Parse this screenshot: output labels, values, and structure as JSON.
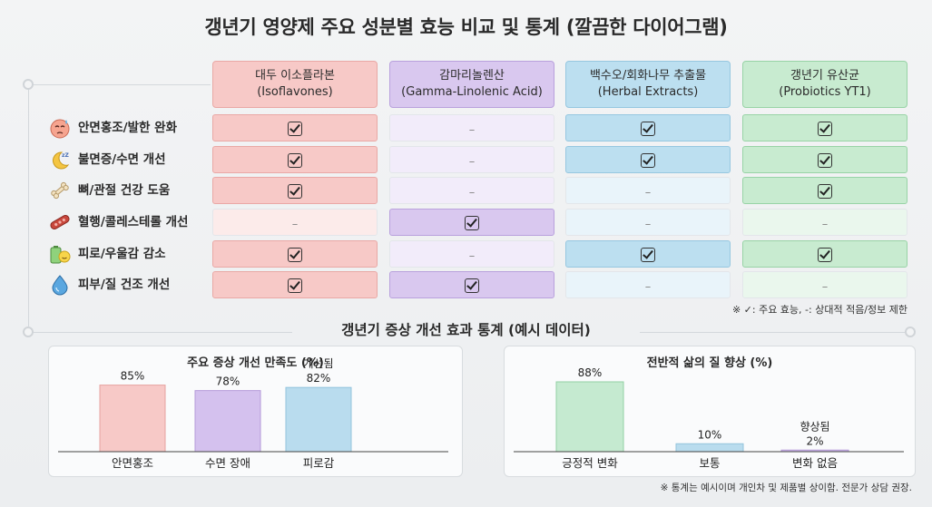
{
  "title": "갱년기 영양제 주요 성분별 효능 비교 및 통계 (깔끔한 다이어그램)",
  "columns": [
    {
      "name": "대두 이소플라본",
      "sub": "(Isoflavones)"
    },
    {
      "name": "감마리놀렌산",
      "sub": "(Gamma-Linolenic Acid)"
    },
    {
      "name": "백수오/회화나무 추출물",
      "sub": "(Herbal Extracts)"
    },
    {
      "name": "갱년기 유산균",
      "sub": "(Probiotics YT1)"
    }
  ],
  "column_colors": [
    {
      "strong": "#f7c9c7",
      "weak": "#fcebea",
      "border": "#e9a8a5"
    },
    {
      "strong": "#d9c8ef",
      "weak": "#f2ecfa",
      "border": "#b9a1dd"
    },
    {
      "strong": "#bcdff0",
      "weak": "#e9f4fa",
      "border": "#96c7e0"
    },
    {
      "strong": "#c8ebd0",
      "weak": "#eaf7ed",
      "border": "#98d3a6"
    }
  ],
  "rows": [
    {
      "label": "안면홍조/발한 완화",
      "icon": "sweating-face-icon",
      "marks": [
        true,
        false,
        true,
        true
      ]
    },
    {
      "label": "불면증/수면 개선",
      "icon": "moon-sleep-icon",
      "marks": [
        true,
        false,
        true,
        true
      ]
    },
    {
      "label": "뼈/관절 건강 도움",
      "icon": "bone-icon",
      "marks": [
        true,
        false,
        false,
        true
      ]
    },
    {
      "label": "혈행/콜레스테롤 개선",
      "icon": "blood-vessel-icon",
      "marks": [
        false,
        true,
        false,
        false
      ]
    },
    {
      "label": "피로/우울감 감소",
      "icon": "battery-smile-icon",
      "marks": [
        true,
        false,
        true,
        true
      ]
    },
    {
      "label": "피부/질 건조 개선",
      "icon": "water-drop-icon",
      "marks": [
        true,
        true,
        false,
        false
      ]
    }
  ],
  "dash_symbol": "–",
  "legend_note": "※ ✓: 주요 효능, -: 상대적 적음/정보 제한",
  "stats_title": "갱년기 증상 개선 효과 통계 (예시 데이터)",
  "footnote": "※ 통계는 예시이며 개인차 및 제품별 상이함. 전문가 상담 권장.",
  "chart_data": [
    {
      "type": "bar",
      "title": "주요 증상 개선 만족도 (%)",
      "categories": [
        "안면홍조",
        "수면 장애",
        "피로감"
      ],
      "values": [
        85,
        78,
        82
      ],
      "value_labels": [
        "85%",
        "78%",
        "82%"
      ],
      "annotations": [
        "",
        "",
        "개선됨"
      ],
      "colors": [
        "#f7c9c7",
        "#d4c1ee",
        "#b9dcee"
      ],
      "borders": [
        "#e6a3a0",
        "#b49ad9",
        "#92c3dc"
      ],
      "ylim": [
        0,
        100
      ]
    },
    {
      "type": "bar",
      "title": "전반적 삶의 질 향상 (%)",
      "categories": [
        "긍정적 변화",
        "보통",
        "변화 없음"
      ],
      "values": [
        88,
        10,
        2
      ],
      "value_labels": [
        "88%",
        "10%",
        "2%"
      ],
      "annotations": [
        "",
        "",
        "향상됨"
      ],
      "colors": [
        "#c5ead0",
        "#b9dcee",
        "#d4c1ee"
      ],
      "borders": [
        "#93d0a3",
        "#92c3dc",
        "#b49ad9"
      ],
      "ylim": [
        0,
        100
      ]
    }
  ]
}
